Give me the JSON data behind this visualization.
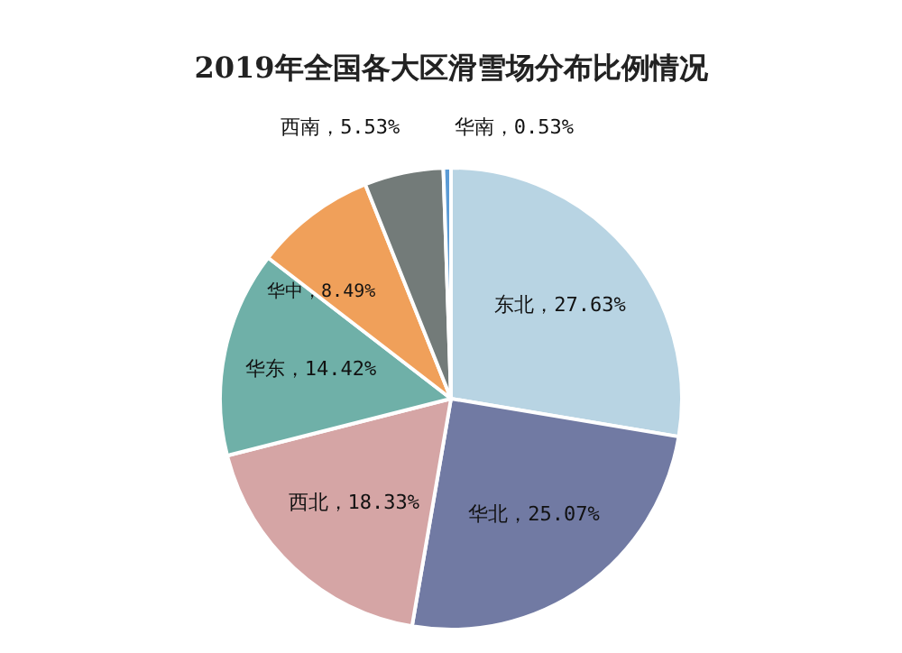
{
  "chart_data": {
    "type": "pie",
    "title": "2019年全国各大区滑雪场分布比例情况",
    "categories": [
      "东北",
      "华北",
      "西北",
      "华东",
      "华中",
      "西南",
      "华南"
    ],
    "values": [
      27.63,
      25.07,
      18.33,
      14.42,
      8.49,
      5.53,
      0.53
    ],
    "colors": [
      "#b8d4e3",
      "#717aa3",
      "#d5a5a5",
      "#6fb0a8",
      "#f0a05a",
      "#737b79",
      "#5b9bd5"
    ],
    "value_labels": [
      "27.63%",
      "25.07%",
      "18.33%",
      "14.42%",
      "8.49%",
      "5.53%",
      "0.53%"
    ],
    "legend": false
  }
}
